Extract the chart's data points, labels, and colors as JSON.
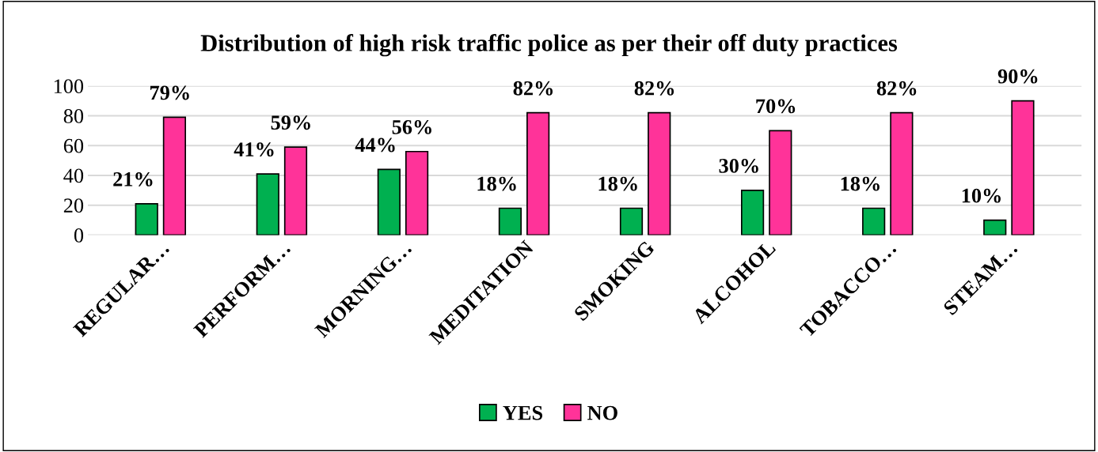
{
  "chart_data": {
    "type": "bar",
    "title": "Distribution of high risk traffic police as per their off duty practices",
    "categories": [
      "REGULAR…",
      "PERFORM…",
      "MORNING…",
      "MEDITATION",
      "SMOKING",
      "ALCOHOL",
      "TOBACCO…",
      "STEAM…"
    ],
    "series": [
      {
        "name": "YES",
        "color": "#00b050",
        "values": [
          21,
          41,
          44,
          18,
          18,
          30,
          18,
          10
        ],
        "value_labels": [
          "21%",
          "41%",
          "44%",
          "18%",
          "18%",
          "30%",
          "18%",
          "10%"
        ]
      },
      {
        "name": "NO",
        "color": "#ff3399",
        "values": [
          79,
          59,
          56,
          82,
          82,
          70,
          82,
          90
        ],
        "value_labels": [
          "79%",
          "59%",
          "56%",
          "82%",
          "82%",
          "70%",
          "82%",
          "90%"
        ]
      }
    ],
    "ylim": [
      0,
      100
    ],
    "yticks": [
      0,
      20,
      40,
      60,
      80,
      100
    ],
    "grid": "y",
    "legend": "bottom"
  }
}
